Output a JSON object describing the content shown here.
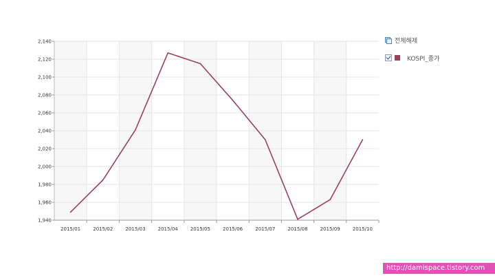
{
  "chart_data": {
    "type": "line",
    "title": "",
    "xlabel": "",
    "ylabel": "",
    "categories": [
      "2015/01",
      "2015/02",
      "2015/03",
      "2015/04",
      "2015/05",
      "2015/06",
      "2015/07",
      "2015/08",
      "2015/09",
      "2015/10"
    ],
    "series": [
      {
        "name": "KOSPI_종가",
        "color": "#9b4058",
        "values": [
          1949,
          1985,
          2041,
          2127,
          2115,
          2074,
          2030,
          1941,
          1963,
          2030
        ]
      }
    ],
    "ylim": [
      1940,
      2140
    ],
    "yticks": [
      1940,
      1960,
      1980,
      2000,
      2020,
      2040,
      2060,
      2080,
      2100,
      2120,
      2140
    ],
    "ytick_labels": [
      "1,940",
      "1,960",
      "1,980",
      "2,000",
      "2,020",
      "2,040",
      "2,060",
      "2,080",
      "2,100",
      "2,120",
      "2,140"
    ],
    "grid": true,
    "legend_position": "right"
  },
  "legend": {
    "select_all_label": "전체해제",
    "select_all_icon": "select-all-icon",
    "series_label": "KOSPI_종가",
    "series_color": "#9b4058"
  },
  "watermark": {
    "text": "http://damispace.tistory.com",
    "background": "#e052b8"
  }
}
